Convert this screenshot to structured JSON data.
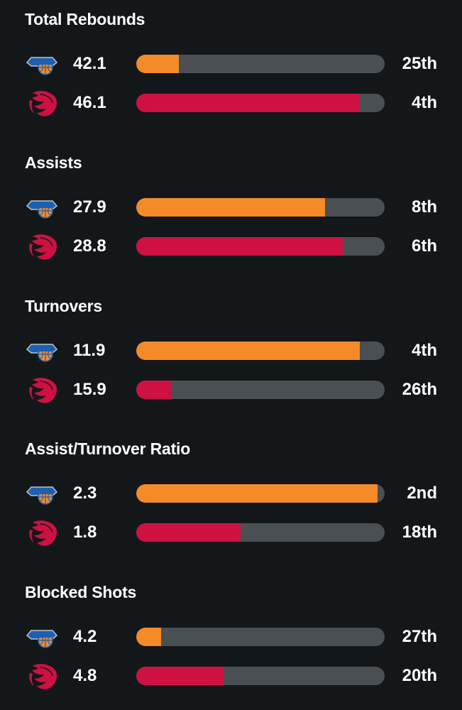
{
  "colors": {
    "background": "#13171a",
    "track": "#4a4f53",
    "knicks": "#f58a28",
    "raptors": "#ce1141"
  },
  "teams": [
    {
      "icon": "knicks-logo-icon"
    },
    {
      "icon": "raptors-logo-icon"
    }
  ],
  "stats": [
    {
      "title": "Total Rebounds",
      "rows": [
        {
          "value": "42.1",
          "rank": "25th",
          "fill": 0.17
        },
        {
          "value": "46.1",
          "rank": "4th",
          "fill": 0.9
        }
      ]
    },
    {
      "title": "Assists",
      "rows": [
        {
          "value": "27.9",
          "rank": "8th",
          "fill": 0.76
        },
        {
          "value": "28.8",
          "rank": "6th",
          "fill": 0.83
        }
      ]
    },
    {
      "title": "Turnovers",
      "rows": [
        {
          "value": "11.9",
          "rank": "4th",
          "fill": 0.9
        },
        {
          "value": "15.9",
          "rank": "26th",
          "fill": 0.14
        }
      ]
    },
    {
      "title": "Assist/Turnover Ratio",
      "rows": [
        {
          "value": "2.3",
          "rank": "2nd",
          "fill": 0.97
        },
        {
          "value": "1.8",
          "rank": "18th",
          "fill": 0.42
        }
      ]
    },
    {
      "title": "Blocked Shots",
      "rows": [
        {
          "value": "4.2",
          "rank": "27th",
          "fill": 0.1
        },
        {
          "value": "4.8",
          "rank": "20th",
          "fill": 0.35
        }
      ]
    }
  ]
}
